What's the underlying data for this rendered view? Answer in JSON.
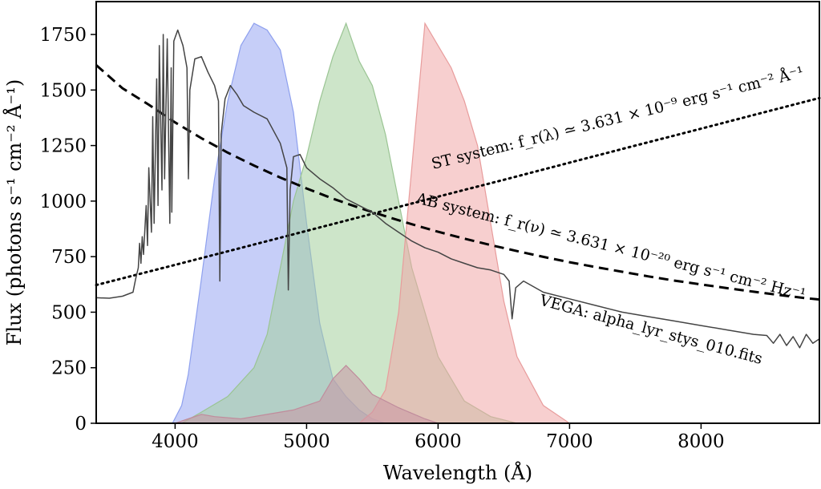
{
  "chart_data": {
    "type": "line",
    "xlabel": "Wavelength  (Å)",
    "ylabel": "Flux  (photons s⁻¹ cm⁻² Å⁻¹)",
    "xlim": [
      3400,
      8900
    ],
    "ylim": [
      0,
      1750
    ],
    "xticks": [
      4000,
      5000,
      6000,
      7000,
      8000
    ],
    "yticks": [
      0,
      250,
      500,
      750,
      1000,
      1250,
      1500,
      1750
    ],
    "grid": false,
    "annotations": [
      {
        "id": "st",
        "text": "ST system: f_r(λ) ≃ 3.631 × 10⁻⁹ erg s⁻¹ cm⁻² Å⁻¹"
      },
      {
        "id": "ab",
        "text": "AB system: f_r(ν) ≃ 3.631 × 10⁻²⁰ erg s⁻¹ cm⁻² Hz⁻¹"
      },
      {
        "id": "vega",
        "text": "VEGA: alpha_lyr_stys_010.fits"
      }
    ],
    "series": [
      {
        "kind": "line",
        "color": "#000000",
        "style": "dotted",
        "x": [
          3400,
          4000,
          4500,
          5000,
          5500,
          6000,
          6500,
          7000,
          7500,
          8000,
          8500,
          8900
        ],
        "y": [
          622,
          713,
          789,
          866,
          943,
          1020,
          1096,
          1173,
          1250,
          1326,
          1403,
          1464
        ]
      },
      {
        "kind": "line",
        "color": "#000000",
        "style": "dashed",
        "x": [
          3400,
          3600,
          3800,
          4000,
          4200,
          4400,
          4600,
          4800,
          5000,
          5200,
          5400,
          5600,
          5800,
          6000,
          6200,
          6400,
          6600,
          6800,
          7000,
          7200,
          7400,
          7600,
          7800,
          8000,
          8200,
          8400,
          8600,
          8800,
          8900
        ],
        "y": [
          1612,
          1508,
          1434,
          1354,
          1283,
          1218,
          1160,
          1106,
          1057,
          1011,
          970,
          932,
          896,
          862,
          831,
          802,
          775,
          749,
          725,
          703,
          682,
          661,
          642,
          625,
          608,
          592,
          577,
          563,
          557
        ]
      },
      {
        "kind": "line",
        "color": "#444444",
        "style": "solid",
        "x": [
          3400,
          3500,
          3600,
          3680,
          3700,
          3720,
          3730,
          3740,
          3750,
          3760,
          3780,
          3790,
          3800,
          3820,
          3830,
          3840,
          3860,
          3870,
          3880,
          3900,
          3910,
          3920,
          3940,
          3960,
          3970,
          3975,
          3990,
          4020,
          4060,
          4090,
          4101,
          4112,
          4150,
          4200,
          4250,
          4300,
          4330,
          4340,
          4350,
          4380,
          4420,
          4470,
          4520,
          4600,
          4700,
          4800,
          4850,
          4861,
          4875,
          4900,
          4950,
          5000,
          5100,
          5200,
          5300,
          5400,
          5500,
          5600,
          5700,
          5800,
          5900,
          6000,
          6100,
          6200,
          6300,
          6400,
          6500,
          6540,
          6563,
          6590,
          6650,
          6800,
          7000,
          7200,
          7400,
          7600,
          7800,
          8000,
          8200,
          8400,
          8500,
          8550,
          8600,
          8650,
          8700,
          8750,
          8800,
          8850,
          8900
        ],
        "y": [
          565,
          563,
          572,
          590,
          650,
          700,
          810,
          720,
          840,
          760,
          980,
          800,
          1150,
          860,
          1380,
          900,
          1550,
          980,
          1700,
          1050,
          1750,
          1100,
          1730,
          900,
          1600,
          950,
          1720,
          1770,
          1700,
          1600,
          1100,
          1500,
          1640,
          1650,
          1580,
          1520,
          1450,
          640,
          1300,
          1460,
          1520,
          1480,
          1430,
          1400,
          1370,
          1260,
          1150,
          600,
          1050,
          1200,
          1210,
          1150,
          1100,
          1060,
          1010,
          980,
          950,
          900,
          860,
          820,
          790,
          770,
          740,
          720,
          700,
          690,
          670,
          640,
          470,
          610,
          640,
          590,
          560,
          530,
          500,
          480,
          460,
          440,
          420,
          400,
          395,
          360,
          400,
          350,
          390,
          340,
          400,
          360,
          380
        ]
      },
      {
        "kind": "area",
        "fill": "#98a6f2",
        "stroke": "#8ea0ee",
        "x": [
          3980,
          4050,
          4100,
          4200,
          4300,
          4400,
          4500,
          4600,
          4700,
          4800,
          4900,
          5000,
          5100,
          5200,
          5300,
          5400,
          5500,
          5600
        ],
        "y": [
          0,
          80,
          220,
          650,
          1100,
          1450,
          1700,
          1800,
          1770,
          1680,
          1400,
          900,
          450,
          200,
          120,
          60,
          20,
          0
        ]
      },
      {
        "kind": "area",
        "fill": "#a4cf9c",
        "stroke": "#9ac493",
        "x": [
          4050,
          4200,
          4400,
          4600,
          4700,
          4800,
          4900,
          5000,
          5100,
          5200,
          5300,
          5400,
          5500,
          5600,
          5700,
          5800,
          6000,
          6200,
          6400,
          6600
        ],
        "y": [
          0,
          50,
          120,
          250,
          400,
          700,
          1000,
          1200,
          1450,
          1650,
          1800,
          1630,
          1520,
          1300,
          1000,
          700,
          300,
          100,
          30,
          0
        ]
      },
      {
        "kind": "area",
        "fill": "#f0a8a8",
        "stroke": "#e89c9c",
        "x": [
          5400,
          5500,
          5600,
          5700,
          5800,
          5900,
          6000,
          6100,
          6200,
          6300,
          6400,
          6500,
          6600,
          6800,
          7000
        ],
        "y": [
          0,
          50,
          150,
          500,
          1150,
          1800,
          1700,
          1600,
          1450,
          1250,
          900,
          550,
          300,
          80,
          0
        ]
      },
      {
        "kind": "area",
        "fill": "#c896a4",
        "stroke": "#c08c9c",
        "x": [
          4000,
          4200,
          4300,
          4500,
          4700,
          4900,
          5100,
          5200,
          5300,
          5400,
          5500,
          5700,
          5900,
          6000
        ],
        "y": [
          0,
          40,
          30,
          20,
          40,
          60,
          100,
          200,
          260,
          200,
          130,
          70,
          20,
          0
        ]
      }
    ]
  }
}
